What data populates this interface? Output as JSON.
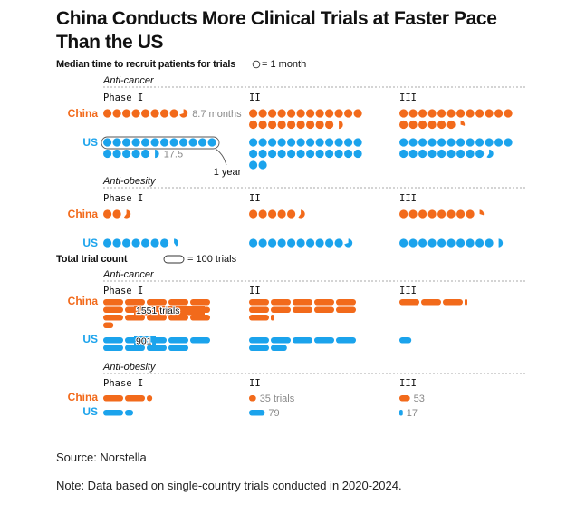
{
  "title": "China Conducts More Clinical Trials at Faster Pace Than the US",
  "source": "Source: Norstella",
  "note": "Note: Data based on single-country trials conducted in 2020-2024.",
  "colors": {
    "china": "#f26a1b",
    "us": "#1ba3ec",
    "label": "#888888",
    "dash": "#aaaaaa"
  },
  "chart_data": [
    {
      "type": "pictogram",
      "title": "Median time to recruit patients for trials",
      "legend": "= 1 month",
      "unit_months": 1,
      "phases": [
        "Phase I",
        "II",
        "III"
      ],
      "annotations": {
        "one_year": "1 year",
        "china_label": "8.7 months",
        "us_label": "17.5"
      },
      "groups": [
        {
          "label": "Anti-cancer",
          "series": [
            {
              "name": "China",
              "values": [
                8.7,
                21.5,
                18.3
              ]
            },
            {
              "name": "US",
              "values": [
                17.5,
                26,
                21.6
              ]
            }
          ]
        },
        {
          "label": "Anti-obesity",
          "series": [
            {
              "name": "China",
              "values": [
                2.6,
                5.6,
                8.3
              ]
            },
            {
              "name": "US",
              "values": [
                7.4,
                10.7,
                10.5
              ]
            }
          ]
        }
      ]
    },
    {
      "type": "pictogram",
      "title": "Total trial count",
      "legend": "= 100 trials",
      "unit_trials": 100,
      "phases": [
        "Phase I",
        "II",
        "III"
      ],
      "groups": [
        {
          "label": "Anti-cancer",
          "series": [
            {
              "name": "China",
              "values": [
                1551,
                1117,
                313
              ],
              "labels": [
                "1551 trials",
                "",
                ""
              ]
            },
            {
              "name": "US",
              "values": [
                901,
                681,
                60
              ],
              "labels": [
                "901",
                "",
                ""
              ]
            }
          ]
        },
        {
          "label": "Anti-obesity",
          "series": [
            {
              "name": "China",
              "values": [
                228,
                35,
                53
              ],
              "labels": [
                "",
                "35 trials",
                "53"
              ]
            },
            {
              "name": "US",
              "values": [
                141,
                79,
                17
              ],
              "labels": [
                "",
                "79",
                "17"
              ]
            }
          ]
        }
      ]
    }
  ]
}
